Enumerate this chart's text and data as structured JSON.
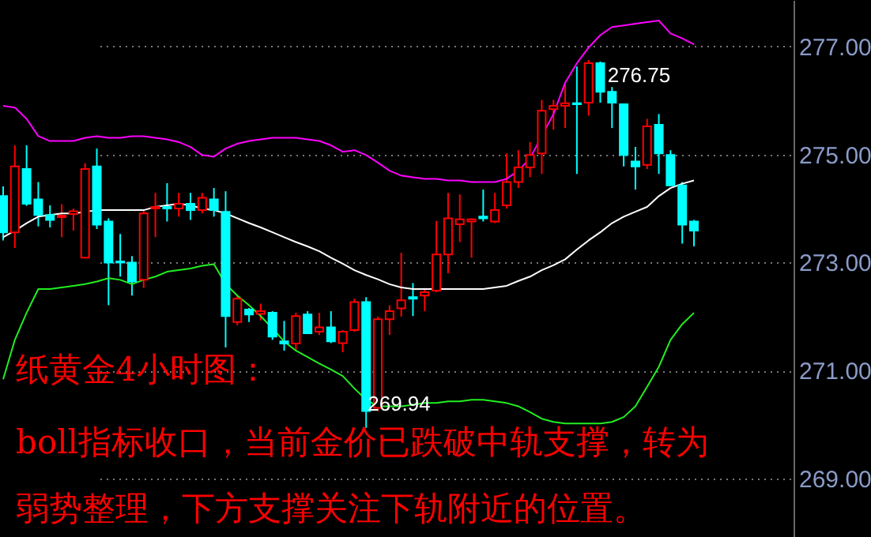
{
  "chart_data": {
    "type": "candlestick",
    "categories": [
      null,
      null,
      null,
      null,
      null,
      null,
      null,
      null,
      null,
      null,
      null,
      null,
      null,
      null,
      null,
      null,
      null,
      null,
      null,
      null,
      null,
      null,
      null,
      null,
      null,
      null,
      null,
      null,
      null,
      null,
      null,
      null,
      null,
      null,
      null,
      null,
      null,
      null,
      null,
      null,
      null,
      null,
      null,
      null,
      null,
      null,
      null,
      null,
      null,
      null,
      null,
      null,
      null,
      null,
      null,
      null,
      null,
      null,
      null,
      null
    ],
    "ohlc": [
      [
        274.23,
        274.41,
        273.41,
        273.56
      ],
      [
        273.56,
        275.17,
        273.27,
        274.78
      ],
      [
        274.73,
        275.17,
        274.05,
        274.09
      ],
      [
        274.17,
        274.49,
        273.67,
        273.88
      ],
      [
        273.88,
        274.06,
        273.65,
        273.79
      ],
      [
        273.84,
        274.08,
        273.47,
        273.87
      ],
      [
        273.9,
        274.0,
        273.59,
        273.95
      ],
      [
        273.09,
        274.84,
        273.09,
        274.73
      ],
      [
        274.78,
        275.11,
        273.62,
        273.7
      ],
      [
        273.76,
        273.82,
        272.21,
        273.0
      ],
      [
        273.02,
        273.53,
        272.74,
        273.0
      ],
      [
        273.0,
        273.12,
        272.39,
        272.65
      ],
      [
        272.68,
        273.97,
        272.53,
        273.91
      ],
      [
        274.0,
        274.29,
        273.47,
        274.03
      ],
      [
        274.03,
        274.47,
        273.76,
        274.0
      ],
      [
        274.0,
        274.29,
        273.85,
        274.09
      ],
      [
        274.09,
        274.29,
        273.79,
        273.97
      ],
      [
        273.97,
        274.29,
        273.91,
        274.2
      ],
      [
        274.17,
        274.38,
        273.85,
        273.97
      ],
      [
        273.94,
        274.32,
        271.43,
        272.01
      ],
      [
        271.9,
        272.39,
        271.84,
        272.33
      ],
      [
        272.13,
        272.16,
        271.9,
        272.04
      ],
      [
        272.05,
        272.24,
        271.93,
        272.1
      ],
      [
        272.07,
        272.1,
        271.57,
        271.63
      ],
      [
        271.54,
        271.92,
        271.37,
        271.5
      ],
      [
        271.5,
        272.07,
        271.37,
        272.01
      ],
      [
        272.04,
        272.1,
        271.69,
        271.69
      ],
      [
        271.72,
        272.07,
        271.66,
        271.8
      ],
      [
        271.8,
        272.1,
        271.51,
        271.54
      ],
      [
        271.51,
        271.75,
        271.34,
        271.72
      ],
      [
        271.75,
        272.33,
        271.72,
        272.27
      ],
      [
        272.27,
        272.36,
        269.94,
        270.25
      ],
      [
        270.31,
        272.0,
        270.25,
        271.95
      ],
      [
        271.95,
        272.21,
        271.66,
        272.1
      ],
      [
        272.15,
        273.18,
        272.0,
        272.3
      ],
      [
        272.36,
        272.62,
        272.01,
        272.33
      ],
      [
        272.39,
        272.53,
        272.1,
        272.45
      ],
      [
        272.48,
        273.77,
        272.45,
        273.15
      ],
      [
        273.15,
        274.29,
        272.8,
        273.82
      ],
      [
        273.71,
        274.26,
        273.38,
        273.8
      ],
      [
        273.76,
        273.82,
        273.09,
        273.8
      ],
      [
        273.85,
        274.35,
        273.76,
        273.82
      ],
      [
        273.76,
        274.29,
        273.73,
        273.97
      ],
      [
        274.06,
        275.02,
        274.0,
        274.49
      ],
      [
        274.49,
        275.08,
        274.38,
        274.76
      ],
      [
        274.76,
        275.23,
        274.58,
        274.99
      ],
      [
        275.02,
        276.01,
        274.64,
        275.81
      ],
      [
        275.84,
        276.01,
        275.46,
        275.9
      ],
      [
        275.9,
        276.3,
        275.49,
        275.95
      ],
      [
        275.95,
        276.63,
        274.64,
        275.93
      ],
      [
        275.96,
        276.75,
        275.72,
        276.69
      ],
      [
        276.69,
        276.72,
        275.96,
        276.16
      ],
      [
        276.16,
        276.25,
        275.49,
        275.96
      ],
      [
        275.93,
        275.93,
        274.78,
        274.99
      ],
      [
        274.87,
        275.14,
        274.35,
        274.78
      ],
      [
        274.81,
        275.66,
        274.73,
        275.52
      ],
      [
        275.55,
        275.75,
        274.64,
        275.02
      ],
      [
        274.99,
        275.08,
        274.41,
        274.43
      ],
      [
        274.43,
        274.49,
        273.35,
        273.7
      ],
      [
        273.76,
        273.79,
        273.3,
        273.59
      ]
    ],
    "colors": [
      "#00ffff",
      "#ff0000",
      "#00ffff",
      "#00ffff",
      "#00ffff",
      "#ff0000",
      "#ff0000",
      "#ff0000",
      "#00ffff",
      "#00ffff",
      "#00ffff",
      "#00ffff",
      "#ff0000",
      "#ff0000",
      "#00ffff",
      "#ff0000",
      "#00ffff",
      "#ff0000",
      "#00ffff",
      "#00ffff",
      "#ff0000",
      "#00ffff",
      "#ff0000",
      "#00ffff",
      "#00ffff",
      "#ff0000",
      "#00ffff",
      "#ff0000",
      "#00ffff",
      "#ff0000",
      "#ff0000",
      "#00ffff",
      "#ff0000",
      "#ff0000",
      "#ff0000",
      "#00ffff",
      "#ff0000",
      "#ff0000",
      "#ff0000",
      "#ff0000",
      "#ff0000",
      "#00ffff",
      "#ff0000",
      "#ff0000",
      "#ff0000",
      "#ff0000",
      "#ff0000",
      "#ff0000",
      "#ff0000",
      "#00ffff",
      "#ff0000",
      "#00ffff",
      "#00ffff",
      "#00ffff",
      "#00ffff",
      "#ff0000",
      "#00ffff",
      "#00ffff",
      "#00ffff",
      "#00ffff"
    ],
    "series": [
      {
        "type": "line",
        "color": "#ff00ff",
        "values": [
          275.9,
          275.87,
          275.66,
          275.34,
          275.25,
          275.25,
          275.25,
          275.31,
          275.34,
          275.31,
          275.31,
          275.34,
          275.34,
          275.31,
          275.28,
          275.23,
          275.14,
          274.99,
          274.96,
          275.11,
          275.2,
          275.25,
          275.28,
          275.31,
          275.31,
          275.31,
          275.28,
          275.25,
          275.17,
          275.05,
          275.08,
          274.99,
          274.85,
          274.7,
          274.61,
          274.58,
          274.55,
          274.55,
          274.52,
          274.52,
          274.49,
          274.49,
          274.49,
          274.55,
          274.7,
          274.93,
          275.34,
          275.75,
          276.33,
          276.69,
          276.98,
          277.21,
          277.36,
          277.39,
          277.42,
          277.45,
          277.48,
          277.24,
          277.15,
          277.04
        ]
      },
      {
        "type": "line",
        "color": "#ffffff",
        "values": [
          273.47,
          273.59,
          273.73,
          273.85,
          273.88,
          273.91,
          273.91,
          273.94,
          273.97,
          273.97,
          273.97,
          273.97,
          273.97,
          274.03,
          274.06,
          274.09,
          274.06,
          274.0,
          273.97,
          273.91,
          273.82,
          273.73,
          273.65,
          273.56,
          273.47,
          273.38,
          273.3,
          273.21,
          273.09,
          272.98,
          272.86,
          272.77,
          272.69,
          272.6,
          272.54,
          272.51,
          272.51,
          272.51,
          272.51,
          272.51,
          272.51,
          272.51,
          272.54,
          272.57,
          272.66,
          272.74,
          272.86,
          272.95,
          273.06,
          273.24,
          273.41,
          273.56,
          273.73,
          273.85,
          273.94,
          274.03,
          274.23,
          274.38,
          274.46,
          274.52
        ]
      },
      {
        "type": "line",
        "color": "#22ee22",
        "values": [
          270.84,
          271.57,
          272.07,
          272.51,
          272.51,
          272.54,
          272.57,
          272.6,
          272.65,
          272.71,
          272.68,
          272.6,
          272.68,
          272.74,
          272.83,
          272.86,
          272.89,
          272.94,
          272.97,
          272.6,
          272.39,
          272.21,
          272.01,
          271.78,
          271.54,
          271.37,
          271.25,
          271.13,
          271.02,
          270.9,
          270.67,
          270.46,
          270.34,
          270.34,
          270.34,
          270.37,
          270.4,
          270.4,
          270.43,
          270.43,
          270.46,
          270.46,
          270.43,
          270.4,
          270.34,
          270.23,
          270.11,
          270.05,
          270.02,
          270.02,
          270.02,
          270.02,
          270.05,
          270.14,
          270.34,
          270.7,
          271.07,
          271.57,
          271.86,
          272.07
        ]
      }
    ],
    "ylim": [
      267.92,
      277.86
    ],
    "yticks": [
      {
        "value": 269,
        "label": "269.00"
      },
      {
        "value": 271,
        "label": "271.00"
      },
      {
        "value": 273,
        "label": "273.00"
      },
      {
        "value": 275,
        "label": "275.00"
      },
      {
        "value": 277,
        "label": "277.00"
      }
    ],
    "grid": "y",
    "tick_labels": "y",
    "annotations": [
      "276.75",
      "269.94",
      "纸黄金4小时图：",
      "boll指标收口，当前金价已跌破中轨支撑，转为",
      "弱势整理，下方支撑关注下轨附近的位置。"
    ]
  }
}
